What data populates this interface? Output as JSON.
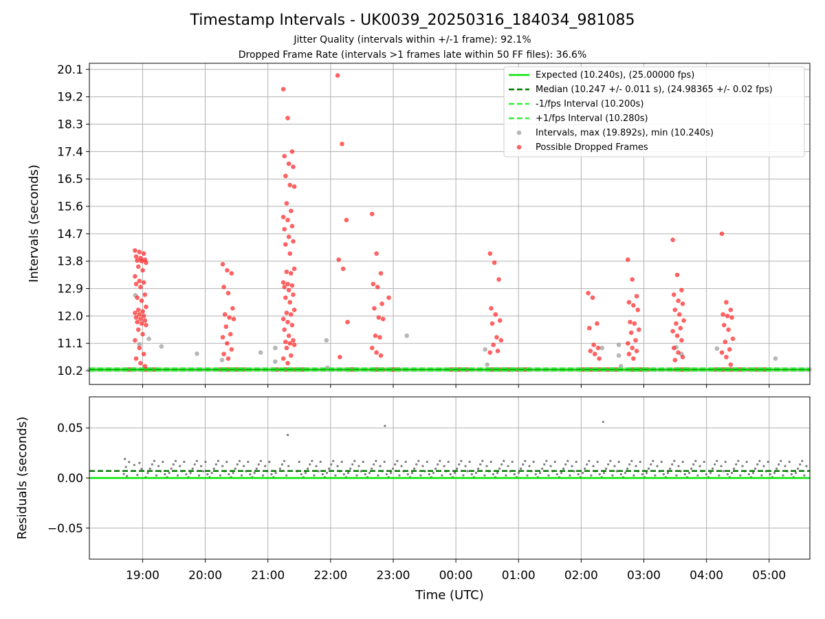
{
  "chart_data": [
    {
      "type": "scatter",
      "title": "Timestamp Intervals - UK0039_20250316_184034_981085",
      "subtitle_lines": [
        "Jitter Quality (intervals within +/-1 frame): 92.1%",
        "Dropped Frame Rate (intervals >1 frames late within 50 FF files): 36.6%"
      ],
      "xlabel": "",
      "ylabel": "Intervals (seconds)",
      "y_ticks": [
        "10.2",
        "11.1",
        "12.0",
        "12.9",
        "13.8",
        "14.7",
        "15.6",
        "16.5",
        "17.4",
        "18.3",
        "19.2",
        "20.1"
      ],
      "x_ticks": [
        "19:00",
        "20:00",
        "21:00",
        "22:00",
        "23:00",
        "00:00",
        "01:00",
        "02:00",
        "03:00",
        "04:00",
        "05:00"
      ],
      "x_range": [
        "2025-03-16T18:09:00",
        "2025-03-17T05:39:00"
      ],
      "ylim": [
        9.75,
        20.3
      ],
      "grid": true,
      "legend_position": "top-right",
      "legend": [
        {
          "label": "Expected (10.240s), (25.00000 fps)",
          "style": "solid",
          "color": "#00e600"
        },
        {
          "label": "Median (10.247 +/- 0.011 s), (24.98365 +/- 0.02 fps)",
          "style": "dashed",
          "color": "#007a00"
        },
        {
          "label": "-1/fps Interval (10.200s)",
          "style": "dashed",
          "color": "#33ee33"
        },
        {
          "label": "+1/fps Interval (10.280s)",
          "style": "dashed",
          "color": "#33ee33"
        },
        {
          "label": "Intervals, max (19.892s), min (10.240s)",
          "style": "marker",
          "color": "#999999"
        },
        {
          "label": "Possible Dropped Frames",
          "style": "marker",
          "color": "#ff2020"
        }
      ],
      "series": [
        {
          "name": "Expected (10.240s), (25.00000 fps)",
          "type": "hline",
          "y": 10.24
        },
        {
          "name": "Median (10.247 +/- 0.011 s), (24.98365 +/- 0.02 fps)",
          "type": "hline",
          "y": 10.247
        },
        {
          "name": "-1/fps Interval (10.200s)",
          "type": "hline",
          "y": 10.2
        },
        {
          "name": "+1/fps Interval (10.280s)",
          "type": "hline",
          "y": 10.28
        },
        {
          "name": "Intervals, max (19.892s), min (10.240s)",
          "points": [
            [
              "18:53",
              12.68
            ],
            [
              "18:57",
              11.07
            ],
            [
              "19:06",
              11.25
            ],
            [
              "19:18",
              11.0
            ],
            [
              "19:52",
              10.76
            ],
            [
              "20:16",
              10.55
            ],
            [
              "20:53",
              10.8
            ],
            [
              "21:07",
              10.95
            ],
            [
              "21:07",
              10.5
            ],
            [
              "21:56",
              11.2
            ],
            [
              "21:57",
              10.3
            ],
            [
              "23:13",
              11.35
            ],
            [
              "00:28",
              10.9
            ],
            [
              "00:30",
              10.4
            ],
            [
              "02:20",
              10.95
            ],
            [
              "02:36",
              10.7
            ],
            [
              "02:36",
              11.05
            ],
            [
              "02:38",
              10.35
            ],
            [
              "03:31",
              10.97
            ],
            [
              "03:36",
              10.75
            ],
            [
              "04:10",
              10.93
            ],
            [
              "05:06",
              10.6
            ]
          ]
        },
        {
          "name": "Possible Dropped Frames",
          "clusters": [
            {
              "t": "18:58",
              "y": [
                14.15,
                14.1,
                14.05,
                13.95,
                13.9,
                13.85,
                13.82,
                13.8,
                13.75,
                13.62,
                13.5,
                13.3,
                13.15,
                13.1,
                13.05,
                12.95,
                12.7,
                12.6,
                12.5,
                12.3,
                12.2,
                12.15,
                12.1,
                12.05,
                12.0,
                11.95,
                11.9,
                11.85,
                11.8,
                11.75,
                11.7,
                11.55,
                11.4,
                11.2,
                10.95,
                10.75,
                10.6,
                10.45,
                10.35
              ]
            },
            {
              "t": "20:22",
              "y": [
                13.7,
                13.5,
                13.4,
                12.95,
                12.75,
                12.25,
                12.05,
                11.95,
                11.9,
                11.65,
                11.4,
                11.3,
                11.1,
                10.9,
                10.75,
                10.6
              ]
            },
            {
              "t": "21:20",
              "y": [
                19.45,
                18.5,
                17.4,
                17.25,
                17.0,
                16.9,
                16.6,
                16.3,
                16.25,
                15.7,
                15.45,
                15.25,
                15.15,
                14.95,
                14.85,
                14.6,
                14.45,
                14.35,
                14.05,
                13.55,
                13.45,
                13.4,
                13.1,
                13.05,
                13.0,
                12.95,
                12.85,
                12.7,
                12.6,
                12.45,
                12.2,
                12.1,
                12.05,
                11.9,
                11.8,
                11.7,
                11.55,
                11.35,
                11.2,
                11.15,
                11.1,
                11.05,
                10.95,
                10.7,
                10.6,
                10.45
              ]
            },
            {
              "t": "22:12",
              "y": [
                19.9,
                17.65,
                15.15,
                13.85,
                13.55,
                11.8,
                10.65
              ]
            },
            {
              "t": "22:45",
              "y": [
                15.35,
                14.05,
                13.4,
                13.05,
                12.95,
                12.4,
                12.25,
                11.95,
                11.9,
                11.35,
                11.3,
                10.95,
                10.8,
                10.7
              ]
            },
            {
              "t": "23:01",
              "y": [
                12.6
              ]
            },
            {
              "t": "00:38",
              "y": [
                14.05,
                13.75,
                13.2,
                12.25,
                12.05,
                11.85,
                11.75,
                11.3,
                11.2,
                11.05,
                10.85,
                10.8
              ]
            },
            {
              "t": "02:12",
              "y": [
                12.75,
                12.6,
                11.75,
                11.6,
                11.05,
                10.95,
                10.85,
                10.75,
                10.6
              ]
            },
            {
              "t": "02:50",
              "y": [
                13.85,
                13.2,
                12.65,
                12.45,
                12.35,
                12.2,
                11.8,
                11.75,
                11.55,
                11.45,
                11.2,
                11.1,
                10.95,
                10.85,
                10.75,
                10.6
              ]
            },
            {
              "t": "03:33",
              "y": [
                14.5,
                13.35,
                12.85,
                12.7,
                12.5,
                12.4,
                12.2,
                12.05,
                11.85,
                11.75,
                11.6,
                11.5,
                11.35,
                11.2,
                10.95,
                10.8,
                10.65,
                10.55
              ]
            },
            {
              "t": "04:20",
              "y": [
                14.7,
                12.45,
                12.2,
                12.05,
                12.0,
                11.95,
                11.7,
                11.55,
                11.25,
                11.15,
                10.9,
                10.8,
                10.65,
                10.4
              ]
            }
          ],
          "baseline_y": 10.24
        }
      ]
    },
    {
      "type": "scatter",
      "xlabel": "Time (UTC)",
      "ylabel": "Residuals (seconds)",
      "y_ticks": [
        "−0.05",
        "0.00",
        "0.05"
      ],
      "x_ticks": [
        "19:00",
        "20:00",
        "21:00",
        "22:00",
        "23:00",
        "00:00",
        "01:00",
        "02:00",
        "03:00",
        "04:00",
        "05:00"
      ],
      "ylim": [
        -0.081,
        0.081
      ],
      "grid": true,
      "series": [
        {
          "name": "Expected",
          "type": "hline",
          "y": 0.0,
          "color": "#00e600"
        },
        {
          "name": "Median",
          "type": "hline",
          "y": 0.007,
          "color": "#007a00",
          "style": "dashed"
        },
        {
          "name": "Residuals",
          "band_low": 0.0,
          "band_high": 0.017,
          "outliers": [
            [
              "18:43",
              0.019
            ],
            [
              "21:19",
              0.043
            ],
            [
              "22:52",
              0.052
            ],
            [
              "02:21",
              0.056
            ]
          ]
        }
      ]
    }
  ]
}
